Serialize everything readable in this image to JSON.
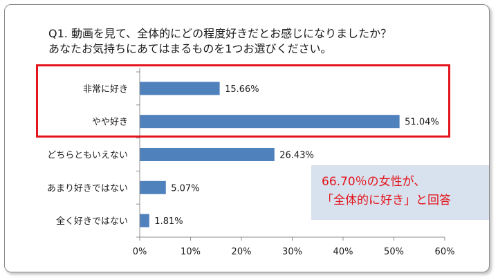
{
  "title": {
    "line1": "Q1. 動画を見て、全体的にどの程度好きだとお感じになりましたか？",
    "line2": "あなたお気持ちにあてはまるものを1つお選びください。"
  },
  "callout": {
    "line1": "66.70％の女性が、",
    "line2": "「全体的に好き」と回答"
  },
  "colors": {
    "bar": "#4f81bd",
    "highlight": "#e3141b",
    "callout_bg": "#d8e1ee"
  },
  "chart_data": {
    "type": "bar",
    "orientation": "horizontal",
    "categories": [
      "非常に好き",
      "やや好き",
      "どちらともいえない",
      "あまり好きではない",
      "全く好きではない"
    ],
    "values": [
      15.66,
      51.04,
      26.43,
      5.07,
      1.81
    ],
    "value_labels": [
      "15.66%",
      "51.04%",
      "26.43%",
      "5.07%",
      "1.81%"
    ],
    "xlim": [
      0,
      60
    ],
    "ticks": [
      0,
      10,
      20,
      30,
      40,
      50,
      60
    ],
    "tick_labels": [
      "0%",
      "10%",
      "20%",
      "30%",
      "40%",
      "50%",
      "60%"
    ],
    "grid": false,
    "highlighted_categories": [
      "非常に好き",
      "やや好き"
    ]
  }
}
